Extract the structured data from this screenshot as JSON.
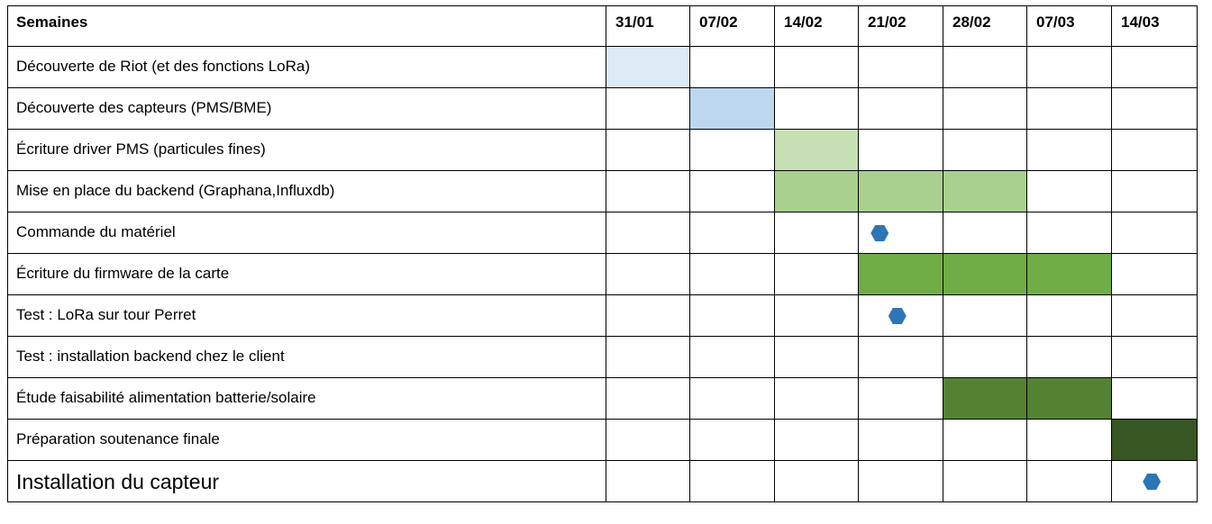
{
  "header": {
    "label": "Semaines",
    "weeks": [
      "31/01",
      "07/02",
      "14/02",
      "21/02",
      "28/02",
      "07/03",
      "14/03"
    ]
  },
  "tasks": [
    {
      "label": "Découverte de Riot (et des fonctions LoRa)",
      "bars": [
        0
      ],
      "color": "#ddebf7"
    },
    {
      "label": "Découverte des capteurs (PMS/BME)",
      "bars": [
        1
      ],
      "color": "#bdd7ee"
    },
    {
      "label": "Écriture driver PMS (particules fines)",
      "bars": [
        2
      ],
      "color": "#c6e0b4"
    },
    {
      "label": "Mise en place du backend (Graphana,Influxdb)",
      "bars": [
        2,
        3,
        4
      ],
      "color": "#a9d08e"
    },
    {
      "label": "Commande du matériel",
      "milestone": {
        "week": 3,
        "offset": 0.25
      },
      "color": "#2e75b6"
    },
    {
      "label": "Écriture du firmware de la carte",
      "bars": [
        3,
        4,
        5
      ],
      "color": "#70ad47"
    },
    {
      "label": "Test : LoRa sur tour Perret",
      "milestone": {
        "week": 3,
        "offset": 0.46
      },
      "color": "#2e75b6"
    },
    {
      "label": "Test : installation backend chez le client",
      "bars": [],
      "color": ""
    },
    {
      "label": "Étude faisabilité alimentation batterie/solaire",
      "bars": [
        4,
        5
      ],
      "color": "#548235"
    },
    {
      "label": "Préparation soutenance finale",
      "bars": [
        6
      ],
      "color": "#375623"
    },
    {
      "label": "Installation du capteur",
      "milestone": {
        "week": 6,
        "offset": 0.47
      },
      "color": "#2e75b6",
      "big": true
    }
  ]
}
